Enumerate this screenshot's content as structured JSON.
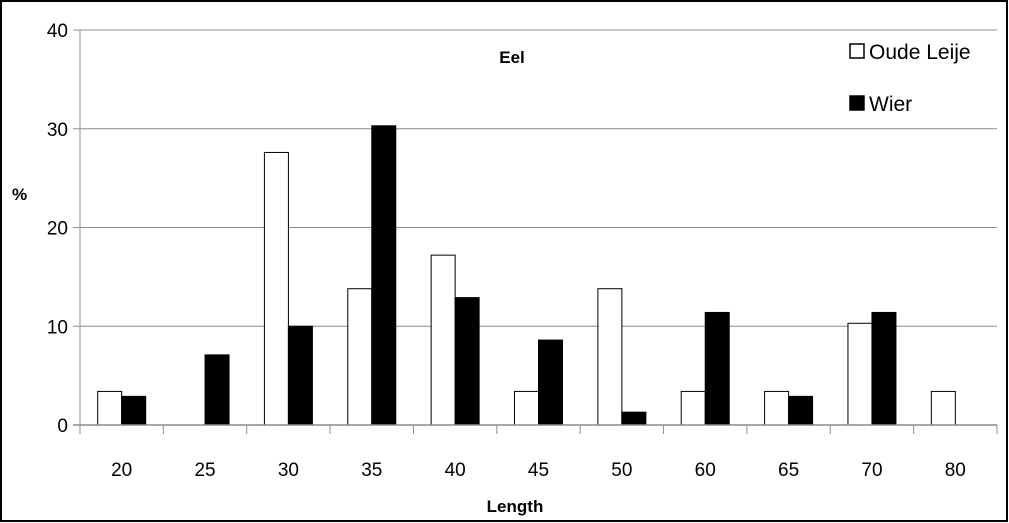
{
  "chart_data": {
    "type": "bar",
    "title": "Eel",
    "xlabel": "Length",
    "ylabel": "%",
    "ylim": [
      0,
      40
    ],
    "yticks": [
      0,
      10,
      20,
      30,
      40
    ],
    "grid": "horizontal",
    "legend": "top-right",
    "categories": [
      "20",
      "25",
      "30",
      "35",
      "40",
      "45",
      "50",
      "60",
      "65",
      "70",
      "80"
    ],
    "series": [
      {
        "name": "Oude Leije",
        "color": "#ffffff",
        "stroke": "#000000",
        "values": [
          3.4,
          0,
          27.6,
          13.8,
          17.2,
          3.4,
          13.8,
          3.4,
          3.4,
          10.3,
          3.4
        ]
      },
      {
        "name": "Wier",
        "color": "#000000",
        "stroke": "#000000",
        "values": [
          2.9,
          7.1,
          10.0,
          30.3,
          12.9,
          8.6,
          1.3,
          11.4,
          2.9,
          11.4,
          0
        ]
      }
    ]
  }
}
